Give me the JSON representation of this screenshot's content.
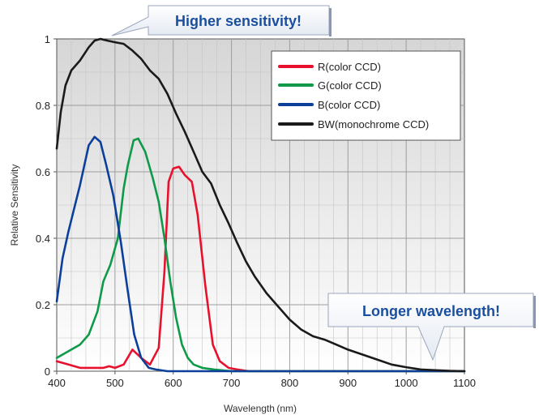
{
  "chart_data": {
    "type": "line",
    "xlabel": "Wavelength (nm)",
    "ylabel": "Relative Sensitivity",
    "xlim": [
      400,
      1100
    ],
    "ylim": [
      0,
      1
    ],
    "x_ticks": [
      400,
      500,
      600,
      700,
      800,
      900,
      1000,
      1100
    ],
    "y_ticks": [
      "0",
      "0.2",
      "0.4",
      "0.6",
      "0.8",
      "1"
    ],
    "grid": true,
    "legend_position": "top-right",
    "series": [
      {
        "name": "R(color CCD)",
        "color": "#e8112d",
        "points": [
          [
            400,
            0.03
          ],
          [
            420,
            0.02
          ],
          [
            440,
            0.01
          ],
          [
            460,
            0.01
          ],
          [
            480,
            0.01
          ],
          [
            490,
            0.015
          ],
          [
            500,
            0.01
          ],
          [
            515,
            0.02
          ],
          [
            530,
            0.065
          ],
          [
            545,
            0.04
          ],
          [
            560,
            0.02
          ],
          [
            575,
            0.07
          ],
          [
            585,
            0.3
          ],
          [
            592,
            0.57
          ],
          [
            600,
            0.61
          ],
          [
            610,
            0.615
          ],
          [
            620,
            0.59
          ],
          [
            632,
            0.57
          ],
          [
            642,
            0.47
          ],
          [
            655,
            0.26
          ],
          [
            668,
            0.08
          ],
          [
            680,
            0.03
          ],
          [
            695,
            0.01
          ],
          [
            710,
            0.005
          ],
          [
            730,
            0.0
          ],
          [
            1100,
            0.0
          ]
        ]
      },
      {
        "name": "G(color CCD)",
        "color": "#0e9a48",
        "points": [
          [
            400,
            0.04
          ],
          [
            420,
            0.06
          ],
          [
            440,
            0.08
          ],
          [
            455,
            0.11
          ],
          [
            470,
            0.18
          ],
          [
            480,
            0.27
          ],
          [
            492,
            0.32
          ],
          [
            505,
            0.4
          ],
          [
            515,
            0.55
          ],
          [
            522,
            0.62
          ],
          [
            532,
            0.695
          ],
          [
            540,
            0.7
          ],
          [
            552,
            0.66
          ],
          [
            565,
            0.58
          ],
          [
            575,
            0.51
          ],
          [
            585,
            0.4
          ],
          [
            595,
            0.27
          ],
          [
            605,
            0.16
          ],
          [
            615,
            0.08
          ],
          [
            625,
            0.04
          ],
          [
            635,
            0.02
          ],
          [
            650,
            0.01
          ],
          [
            670,
            0.005
          ],
          [
            700,
            0.0
          ],
          [
            1100,
            0.0
          ]
        ]
      },
      {
        "name": "B(color CCD)",
        "color": "#0b3f9a",
        "points": [
          [
            400,
            0.21
          ],
          [
            410,
            0.34
          ],
          [
            420,
            0.42
          ],
          [
            440,
            0.56
          ],
          [
            455,
            0.68
          ],
          [
            465,
            0.705
          ],
          [
            475,
            0.69
          ],
          [
            485,
            0.62
          ],
          [
            497,
            0.53
          ],
          [
            510,
            0.39
          ],
          [
            522,
            0.24
          ],
          [
            533,
            0.11
          ],
          [
            545,
            0.04
          ],
          [
            558,
            0.01
          ],
          [
            570,
            0.005
          ],
          [
            590,
            0.0
          ],
          [
            1100,
            0.0
          ]
        ]
      },
      {
        "name": "BW(monochrome CCD)",
        "color": "#1a1a1a",
        "points": [
          [
            400,
            0.67
          ],
          [
            407,
            0.78
          ],
          [
            415,
            0.86
          ],
          [
            425,
            0.905
          ],
          [
            440,
            0.935
          ],
          [
            455,
            0.975
          ],
          [
            465,
            0.995
          ],
          [
            475,
            1.0
          ],
          [
            487,
            0.995
          ],
          [
            500,
            0.99
          ],
          [
            515,
            0.985
          ],
          [
            530,
            0.965
          ],
          [
            545,
            0.94
          ],
          [
            560,
            0.905
          ],
          [
            575,
            0.88
          ],
          [
            590,
            0.835
          ],
          [
            605,
            0.775
          ],
          [
            620,
            0.72
          ],
          [
            635,
            0.66
          ],
          [
            650,
            0.6
          ],
          [
            665,
            0.565
          ],
          [
            680,
            0.5
          ],
          [
            695,
            0.445
          ],
          [
            710,
            0.385
          ],
          [
            725,
            0.33
          ],
          [
            740,
            0.285
          ],
          [
            760,
            0.235
          ],
          [
            780,
            0.195
          ],
          [
            800,
            0.155
          ],
          [
            820,
            0.125
          ],
          [
            840,
            0.105
          ],
          [
            860,
            0.095
          ],
          [
            880,
            0.08
          ],
          [
            900,
            0.065
          ],
          [
            925,
            0.05
          ],
          [
            950,
            0.035
          ],
          [
            975,
            0.02
          ],
          [
            1000,
            0.012
          ],
          [
            1025,
            0.005
          ],
          [
            1050,
            0.003
          ],
          [
            1075,
            0.001
          ],
          [
            1100,
            0.0
          ]
        ]
      }
    ],
    "annotations": [
      {
        "text": "Higher sensitivity!"
      },
      {
        "text": "Longer wavelength!"
      }
    ]
  }
}
